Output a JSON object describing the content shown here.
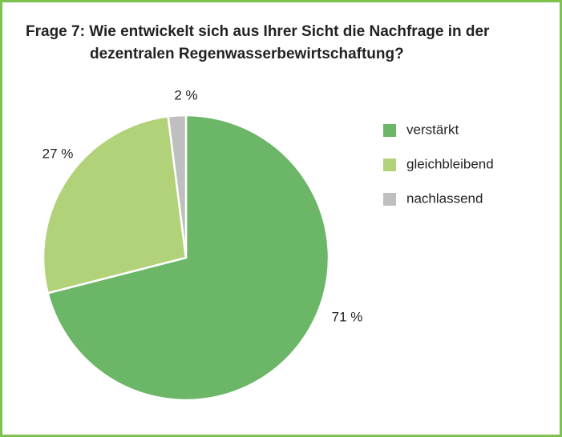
{
  "chart_data": {
    "type": "pie",
    "title": [
      "Frage 7: Wie entwickelt sich aus Ihrer Sicht die Nachfrage in der",
      "dezentralen Regenwasserbewirtschaftung?"
    ],
    "categories": [
      "verstärkt",
      "gleichbleibend",
      "nachlassend"
    ],
    "values": [
      71,
      27,
      2
    ],
    "value_labels": [
      "71 %",
      "27 %",
      "2 %"
    ],
    "colors": [
      "#6cb668",
      "#b2d27a",
      "#bfbfbf"
    ],
    "legend": "right"
  }
}
